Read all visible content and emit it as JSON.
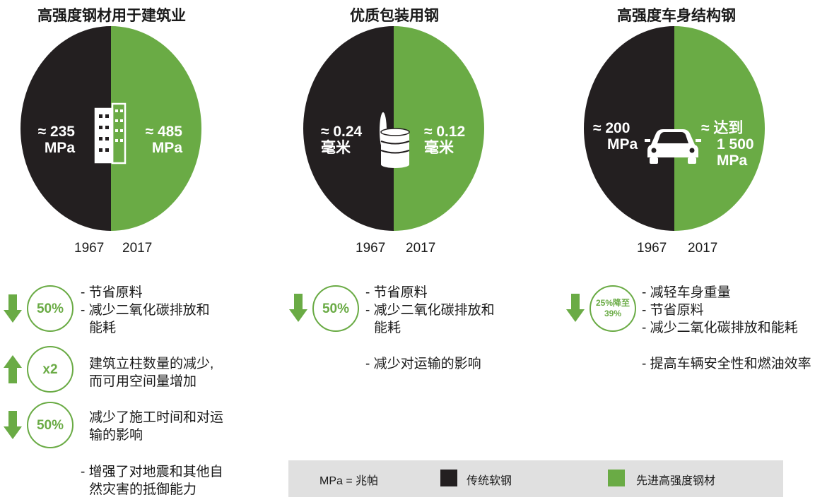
{
  "colors": {
    "traditional": "#231f20",
    "advanced": "#6aab45",
    "legend_bg": "#e0e0e0"
  },
  "chart_data": [
    {
      "type": "pie",
      "title": "高强度钢材用于建筑业",
      "categories": [
        "1967",
        "2017"
      ],
      "series": [
        {
          "values": [
            50,
            50
          ]
        }
      ],
      "labels": {
        "left_value": "≈ 235",
        "left_unit": "MPa",
        "right_value": "≈ 485",
        "right_unit": "MPa"
      },
      "icon": "building-icon"
    },
    {
      "type": "pie",
      "title": "优质包装用钢",
      "categories": [
        "1967",
        "2017"
      ],
      "series": [
        {
          "values": [
            50,
            50
          ]
        }
      ],
      "labels": {
        "left_value": "≈ 0.24",
        "left_unit": "毫米",
        "right_value": "≈ 0.12",
        "right_unit": "毫米"
      },
      "icon": "can-icon"
    },
    {
      "type": "pie",
      "title": "高强度车身结构钢",
      "categories": [
        "1967",
        "2017"
      ],
      "series": [
        {
          "values": [
            50,
            50
          ]
        }
      ],
      "labels": {
        "left_value": "≈ 200",
        "left_unit": "MPa",
        "right_value": "≈ 达到",
        "right_line2": "1 500",
        "right_unit": "MPa"
      },
      "icon": "car-icon"
    }
  ],
  "benefits": {
    "col1": {
      "badges": [
        "50%",
        "x2",
        "50%"
      ],
      "group1": [
        "- 节省原料",
        "- 减少二氧化碳排放和",
        "能耗"
      ],
      "group2": [
        "建筑立柱数量的减少,",
        "而可用空间量增加"
      ],
      "group3": [
        "减少了施工时间和对运",
        "输的影响"
      ],
      "group4": [
        "- 增强了对地震和其他自",
        "然灾害的抵御能力"
      ]
    },
    "col2": {
      "badge": "50%",
      "lines": [
        "- 节省原料",
        "- 减少二氧化碳排放和",
        "能耗",
        "- 减少对运输的影响"
      ]
    },
    "col3": {
      "badge_line1": "25%降至",
      "badge_line2": "39%",
      "lines": [
        "- 减轻车身重量",
        "- 节省原料",
        "- 减少二氧化碳排放和能耗",
        "- 提高车辆安全性和燃油效率"
      ]
    }
  },
  "legend": {
    "unit_note": "MPa = 兆帕",
    "traditional": "传统软钢",
    "advanced": "先进高强度钢材"
  }
}
